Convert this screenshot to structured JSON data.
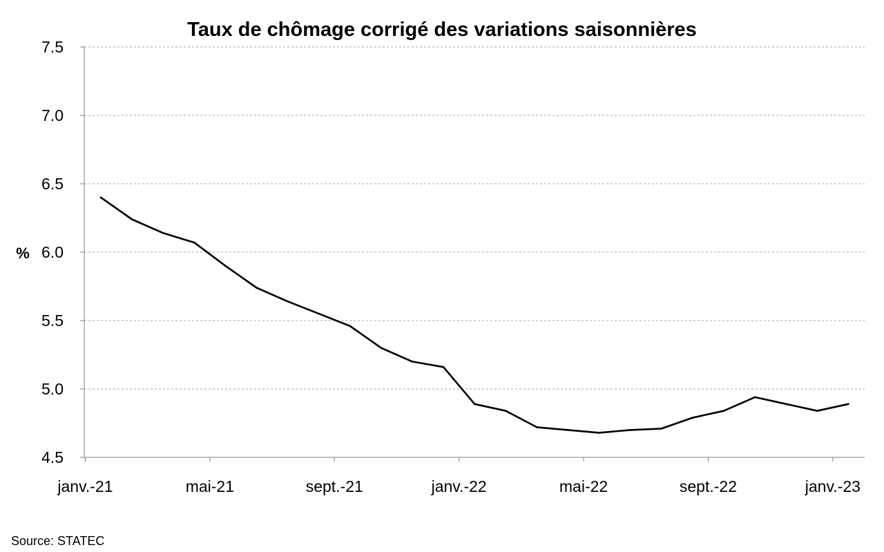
{
  "chart_data": {
    "type": "line",
    "title": "Taux de chômage corrigé des variations saisonnières",
    "ylabel": "%",
    "xlabel": "",
    "ylim": [
      4.5,
      7.5
    ],
    "y_ticks": [
      "7.5",
      "7.0",
      "6.5",
      "6.0",
      "5.5",
      "5.0",
      "4.5"
    ],
    "x_tick_labels": [
      "janv.-21",
      "mai-21",
      "sept.-21",
      "janv.-22",
      "mai-22",
      "sept.-22",
      "janv.-23"
    ],
    "x": [
      "2021-01",
      "2021-02",
      "2021-03",
      "2021-04",
      "2021-05",
      "2021-06",
      "2021-07",
      "2021-08",
      "2021-09",
      "2021-10",
      "2021-11",
      "2021-12",
      "2022-01",
      "2022-02",
      "2022-03",
      "2022-04",
      "2022-05",
      "2022-06",
      "2022-07",
      "2022-08",
      "2022-09",
      "2022-10",
      "2022-11",
      "2022-12",
      "2023-01"
    ],
    "series": [
      {
        "values": [
          6.4,
          6.24,
          6.14,
          6.07,
          5.9,
          5.74,
          5.64,
          5.55,
          5.46,
          5.3,
          5.2,
          5.16,
          4.89,
          4.84,
          4.72,
          4.7,
          4.68,
          4.7,
          4.71,
          4.79,
          4.84,
          4.94,
          4.89,
          4.84,
          4.89
        ],
        "color": "#000000"
      }
    ],
    "grid": true,
    "grid_style": "dashed-horizontal",
    "legend": "none"
  },
  "source": "Source: STATEC"
}
